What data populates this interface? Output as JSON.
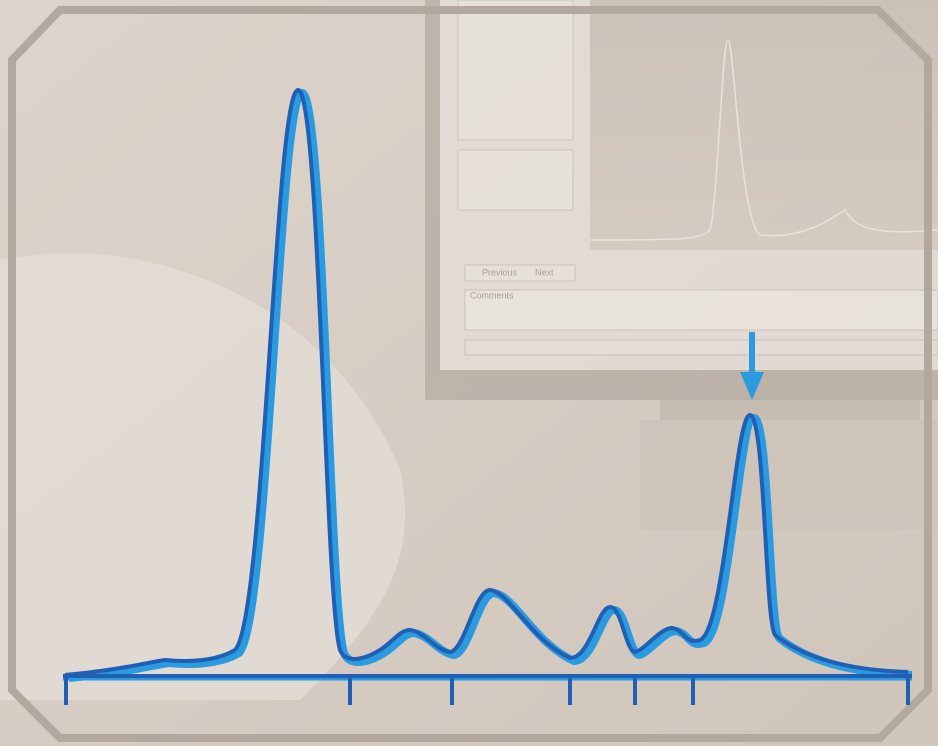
{
  "screen": {
    "buttons": [
      "Previous",
      "Next"
    ],
    "panel_title": "Comments"
  }
}
